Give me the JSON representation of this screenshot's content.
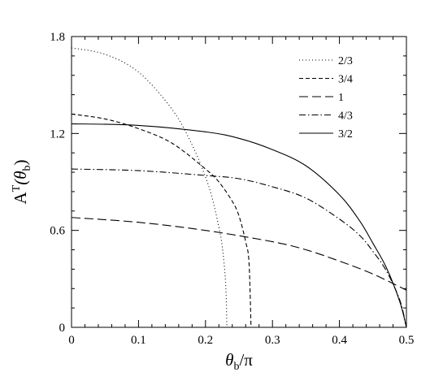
{
  "chart_data": {
    "type": "line",
    "xlabel": {
      "main": "θ",
      "sub": "b",
      "suffix": "/π"
    },
    "ylabel": {
      "main": "A",
      "sup": "T",
      "open": "(θ",
      "sub": "b",
      "close": ")"
    },
    "xlim": [
      0,
      0.5
    ],
    "ylim": [
      0,
      1.8
    ],
    "xticks": [
      0,
      0.1,
      0.2,
      0.3,
      0.4,
      0.5
    ],
    "yticks": [
      0,
      0.6,
      1.2,
      1.8
    ],
    "xtick_labels": [
      "0",
      "0.1",
      "0.2",
      "0.3",
      "0.4",
      "0.5"
    ],
    "ytick_labels": [
      "0",
      "0.6",
      "1.2",
      "1.8"
    ],
    "grid": false,
    "legend_position": "top-right",
    "series": [
      {
        "name": "2/3",
        "style": "dotted",
        "x": [
          0,
          0.05,
          0.1,
          0.15,
          0.18,
          0.2,
          0.21,
          0.22,
          0.225,
          0.23,
          0.232
        ],
        "y": [
          1.73,
          1.69,
          1.58,
          1.35,
          1.13,
          0.93,
          0.8,
          0.62,
          0.5,
          0.28,
          0
        ]
      },
      {
        "name": "3/4",
        "style": "short-dash",
        "x": [
          0,
          0.05,
          0.1,
          0.15,
          0.2,
          0.22,
          0.24,
          0.25,
          0.26,
          0.265,
          0.268
        ],
        "y": [
          1.32,
          1.29,
          1.23,
          1.14,
          0.98,
          0.9,
          0.78,
          0.69,
          0.53,
          0.4,
          0
        ]
      },
      {
        "name": "1",
        "style": "long-dash",
        "x": [
          0,
          0.1,
          0.2,
          0.3,
          0.35,
          0.4,
          0.45,
          0.5
        ],
        "y": [
          0.68,
          0.65,
          0.6,
          0.53,
          0.48,
          0.41,
          0.33,
          0.23
        ]
      },
      {
        "name": "4/3",
        "style": "dash-dot",
        "x": [
          0,
          0.1,
          0.2,
          0.25,
          0.3,
          0.35,
          0.4,
          0.43,
          0.45,
          0.47,
          0.49,
          0.5
        ],
        "y": [
          0.98,
          0.97,
          0.94,
          0.92,
          0.87,
          0.8,
          0.67,
          0.57,
          0.47,
          0.35,
          0.17,
          0
        ]
      },
      {
        "name": "3/2",
        "style": "solid",
        "x": [
          0,
          0.1,
          0.2,
          0.25,
          0.3,
          0.35,
          0.4,
          0.43,
          0.45,
          0.47,
          0.49,
          0.5
        ],
        "y": [
          1.26,
          1.25,
          1.21,
          1.17,
          1.1,
          1.0,
          0.82,
          0.66,
          0.52,
          0.37,
          0.16,
          0
        ]
      }
    ]
  }
}
